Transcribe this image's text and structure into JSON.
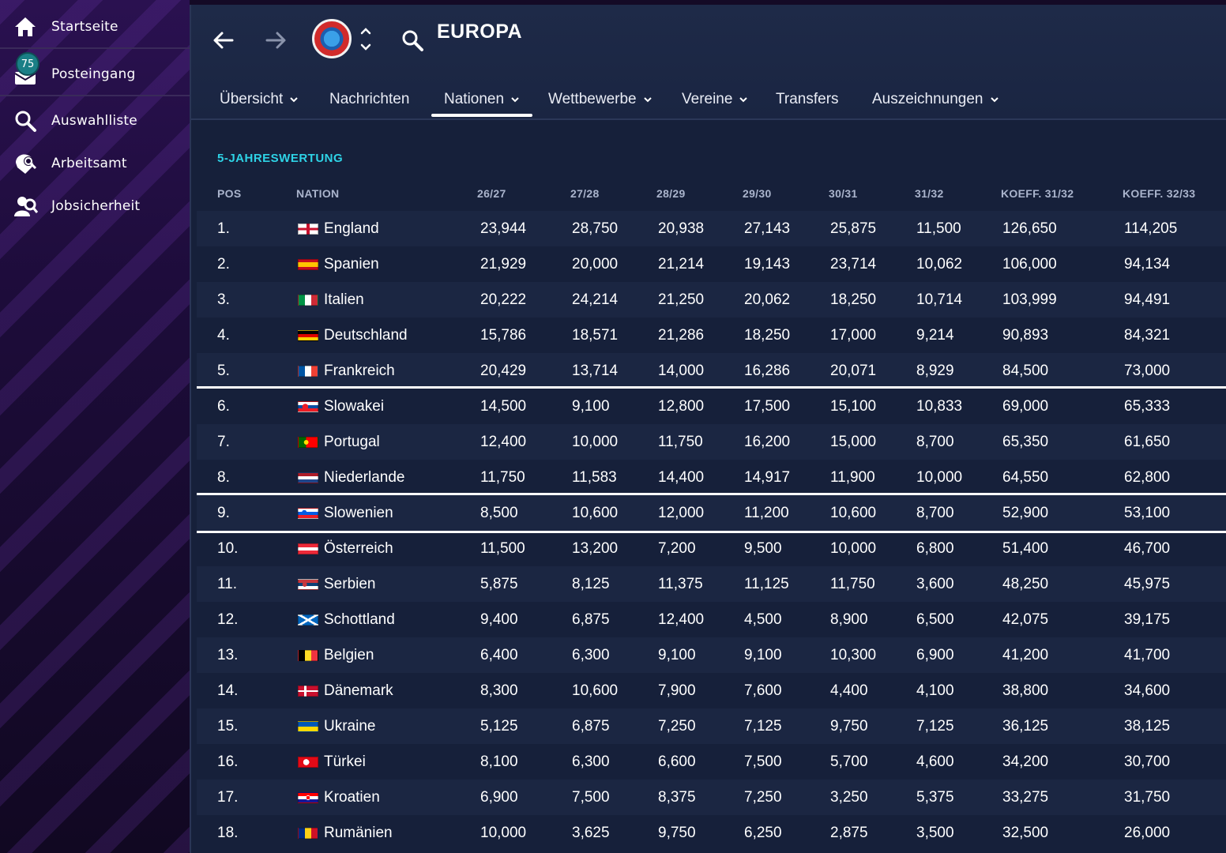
{
  "sidebar": {
    "items": [
      {
        "label": "Startseite",
        "icon": "home-icon"
      },
      {
        "label": "Posteingang",
        "icon": "inbox-icon",
        "badge": "75"
      },
      {
        "label": "Auswahlliste",
        "icon": "search-icon"
      },
      {
        "label": "Arbeitsamt",
        "icon": "job-center-icon"
      },
      {
        "label": "Jobsicherheit",
        "icon": "job-security-icon"
      }
    ]
  },
  "header": {
    "title": "EUROPA",
    "logo": "uefa-logo",
    "tabs": [
      {
        "label": "Übersicht",
        "dropdown": true
      },
      {
        "label": "Nachrichten",
        "dropdown": false
      },
      {
        "label": "Nationen",
        "dropdown": true,
        "active": true
      },
      {
        "label": "Wettbewerbe",
        "dropdown": true
      },
      {
        "label": "Vereine",
        "dropdown": true
      },
      {
        "label": "Transfers",
        "dropdown": false
      },
      {
        "label": "Auszeichnungen",
        "dropdown": true
      }
    ]
  },
  "table": {
    "title": "5-JAHRESWERTUNG",
    "columns": [
      "POS",
      "NATION",
      "26/27",
      "27/28",
      "28/29",
      "29/30",
      "30/31",
      "31/32",
      "KOEFF. 31/32",
      "KOEFF. 32/33"
    ],
    "rows": [
      {
        "pos": "1.",
        "nation": "England",
        "flag": "england",
        "values": [
          "23,944",
          "28,750",
          "20,938",
          "27,143",
          "25,875",
          "11,500",
          "126,650",
          "114,205"
        ]
      },
      {
        "pos": "2.",
        "nation": "Spanien",
        "flag": "spain",
        "values": [
          "21,929",
          "20,000",
          "21,214",
          "19,143",
          "23,714",
          "10,062",
          "106,000",
          "94,134"
        ]
      },
      {
        "pos": "3.",
        "nation": "Italien",
        "flag": "italy",
        "values": [
          "20,222",
          "24,214",
          "21,250",
          "20,062",
          "18,250",
          "10,714",
          "103,999",
          "94,491"
        ]
      },
      {
        "pos": "4.",
        "nation": "Deutschland",
        "flag": "germany",
        "values": [
          "15,786",
          "18,571",
          "21,286",
          "18,250",
          "17,000",
          "9,214",
          "90,893",
          "84,321"
        ]
      },
      {
        "pos": "5.",
        "nation": "Frankreich",
        "flag": "france",
        "values": [
          "20,429",
          "13,714",
          "14,000",
          "16,286",
          "20,071",
          "8,929",
          "84,500",
          "73,000"
        ]
      },
      {
        "pos": "6.",
        "nation": "Slowakei",
        "flag": "slovakia",
        "values": [
          "14,500",
          "9,100",
          "12,800",
          "17,500",
          "15,100",
          "10,833",
          "69,000",
          "65,333"
        ]
      },
      {
        "pos": "7.",
        "nation": "Portugal",
        "flag": "portugal",
        "values": [
          "12,400",
          "10,000",
          "11,750",
          "16,200",
          "15,000",
          "8,700",
          "65,350",
          "61,650"
        ]
      },
      {
        "pos": "8.",
        "nation": "Niederlande",
        "flag": "netherlands",
        "values": [
          "11,750",
          "11,583",
          "14,400",
          "14,917",
          "11,900",
          "10,000",
          "64,550",
          "62,800"
        ]
      },
      {
        "pos": "9.",
        "nation": "Slowenien",
        "flag": "slovenia",
        "values": [
          "8,500",
          "10,600",
          "12,000",
          "11,200",
          "10,600",
          "8,700",
          "52,900",
          "53,100"
        ]
      },
      {
        "pos": "10.",
        "nation": "Österreich",
        "flag": "austria",
        "values": [
          "11,500",
          "13,200",
          "7,200",
          "9,500",
          "10,000",
          "6,800",
          "51,400",
          "46,700"
        ]
      },
      {
        "pos": "11.",
        "nation": "Serbien",
        "flag": "serbia",
        "values": [
          "5,875",
          "8,125",
          "11,375",
          "11,125",
          "11,750",
          "3,600",
          "48,250",
          "45,975"
        ]
      },
      {
        "pos": "12.",
        "nation": "Schottland",
        "flag": "scotland",
        "values": [
          "9,400",
          "6,875",
          "12,400",
          "4,500",
          "8,900",
          "6,500",
          "42,075",
          "39,175"
        ]
      },
      {
        "pos": "13.",
        "nation": "Belgien",
        "flag": "belgium",
        "values": [
          "6,400",
          "6,300",
          "9,100",
          "9,100",
          "10,300",
          "6,900",
          "41,200",
          "41,700"
        ]
      },
      {
        "pos": "14.",
        "nation": "Dänemark",
        "flag": "denmark",
        "values": [
          "8,300",
          "10,600",
          "7,900",
          "7,600",
          "4,400",
          "4,100",
          "38,800",
          "34,600"
        ]
      },
      {
        "pos": "15.",
        "nation": "Ukraine",
        "flag": "ukraine",
        "values": [
          "5,125",
          "6,875",
          "7,250",
          "7,125",
          "9,750",
          "7,125",
          "36,125",
          "38,125"
        ]
      },
      {
        "pos": "16.",
        "nation": "Türkei",
        "flag": "turkey",
        "values": [
          "8,100",
          "6,300",
          "6,600",
          "7,500",
          "5,700",
          "4,600",
          "34,200",
          "30,700"
        ]
      },
      {
        "pos": "17.",
        "nation": "Kroatien",
        "flag": "croatia",
        "values": [
          "6,900",
          "7,500",
          "8,375",
          "7,250",
          "3,250",
          "5,375",
          "33,275",
          "31,750"
        ]
      },
      {
        "pos": "18.",
        "nation": "Rumänien",
        "flag": "romania",
        "values": [
          "10,000",
          "3,625",
          "9,750",
          "6,250",
          "2,875",
          "3,500",
          "32,500",
          "26,000"
        ]
      }
    ]
  },
  "colors": {
    "accent": "#2ed3e6",
    "badge": "#1a7f86",
    "row_alt": "#1b2642",
    "panel": "#16203a"
  }
}
